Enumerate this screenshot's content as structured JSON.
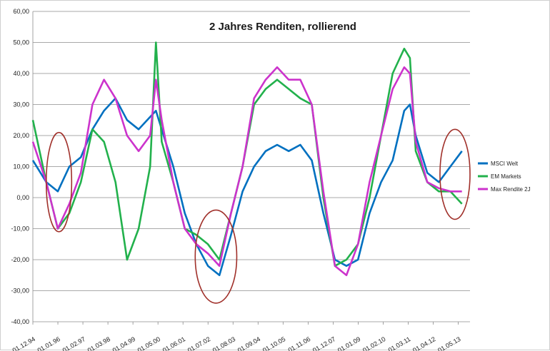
{
  "chart_data": {
    "type": "line",
    "title": "2 Jahres Renditen, rollierend",
    "xlabel": "",
    "ylabel": "",
    "ylim": [
      -40,
      60
    ],
    "y_ticks": [
      "60,00",
      "50,00",
      "40,00",
      "30,00",
      "20,00",
      "10,00",
      "0,00",
      "-10,00",
      "-20,00",
      "-30,00",
      "-40,00"
    ],
    "x_ticks": [
      "01.12.94",
      "01.01.96",
      "01.02.97",
      "01.03.98",
      "01.04.99",
      "01.05.00",
      "01.06.01",
      "01.07.02",
      "01.08.03",
      "01.09.04",
      "01.10.05",
      "01.11.06",
      "01.12.07",
      "01.01.09",
      "01.02.10",
      "01.03.11",
      "01.04.12",
      "01.05.13"
    ],
    "grid": true,
    "legend_position": "right",
    "x": [
      1994.92,
      1995.5,
      1996.0,
      1996.5,
      1997.0,
      1997.5,
      1998.0,
      1998.5,
      1999.0,
      1999.5,
      2000.0,
      2000.25,
      2000.5,
      2001.0,
      2001.5,
      2002.0,
      2002.5,
      2003.0,
      2003.5,
      2004.0,
      2004.5,
      2005.0,
      2005.5,
      2006.0,
      2006.5,
      2007.0,
      2007.5,
      2008.0,
      2008.5,
      2009.0,
      2009.5,
      2010.0,
      2010.5,
      2011.0,
      2011.25,
      2011.5,
      2012.0,
      2012.5,
      2013.0,
      2013.5
    ],
    "series": [
      {
        "name": "MSCI Welt",
        "color": "#0070c0",
        "values": [
          12,
          5,
          2,
          10,
          13,
          22,
          28,
          32,
          25,
          22,
          26,
          28,
          22,
          10,
          -5,
          -15,
          -22,
          -25,
          -12,
          2,
          10,
          15,
          17,
          15,
          17,
          12,
          -5,
          -20,
          -22,
          -20,
          -5,
          5,
          12,
          28,
          30,
          20,
          8,
          5,
          10,
          15
        ]
      },
      {
        "name": "EM Markets",
        "color": "#22b14c",
        "values": [
          25,
          5,
          -10,
          -5,
          5,
          22,
          18,
          5,
          -20,
          -10,
          10,
          50,
          18,
          5,
          -10,
          -12,
          -15,
          -20,
          -5,
          10,
          30,
          35,
          38,
          35,
          32,
          30,
          0,
          -22,
          -20,
          -15,
          0,
          20,
          40,
          48,
          45,
          15,
          5,
          2,
          2,
          -2
        ]
      },
      {
        "name": "Max Rendite 2J",
        "color": "#cc33cc",
        "values": [
          18,
          5,
          -10,
          -2,
          8,
          30,
          38,
          32,
          20,
          15,
          20,
          38,
          25,
          5,
          -10,
          -15,
          -18,
          -22,
          -5,
          10,
          32,
          38,
          42,
          38,
          38,
          30,
          2,
          -22,
          -25,
          -15,
          5,
          20,
          35,
          42,
          40,
          18,
          5,
          3,
          2,
          2
        ]
      }
    ],
    "annotations": [
      {
        "type": "ellipse",
        "color": "#a0302a",
        "x_center": 1996.05,
        "y_center": 5,
        "x_radius": 0.55,
        "y_radius": 16
      },
      {
        "type": "ellipse",
        "color": "#a0302a",
        "x_center": 2002.85,
        "y_center": -19,
        "x_radius": 0.9,
        "y_radius": 15
      },
      {
        "type": "ellipse",
        "color": "#a0302a",
        "x_center": 2013.2,
        "y_center": 7.5,
        "x_radius": 0.65,
        "y_radius": 14.5
      }
    ]
  }
}
